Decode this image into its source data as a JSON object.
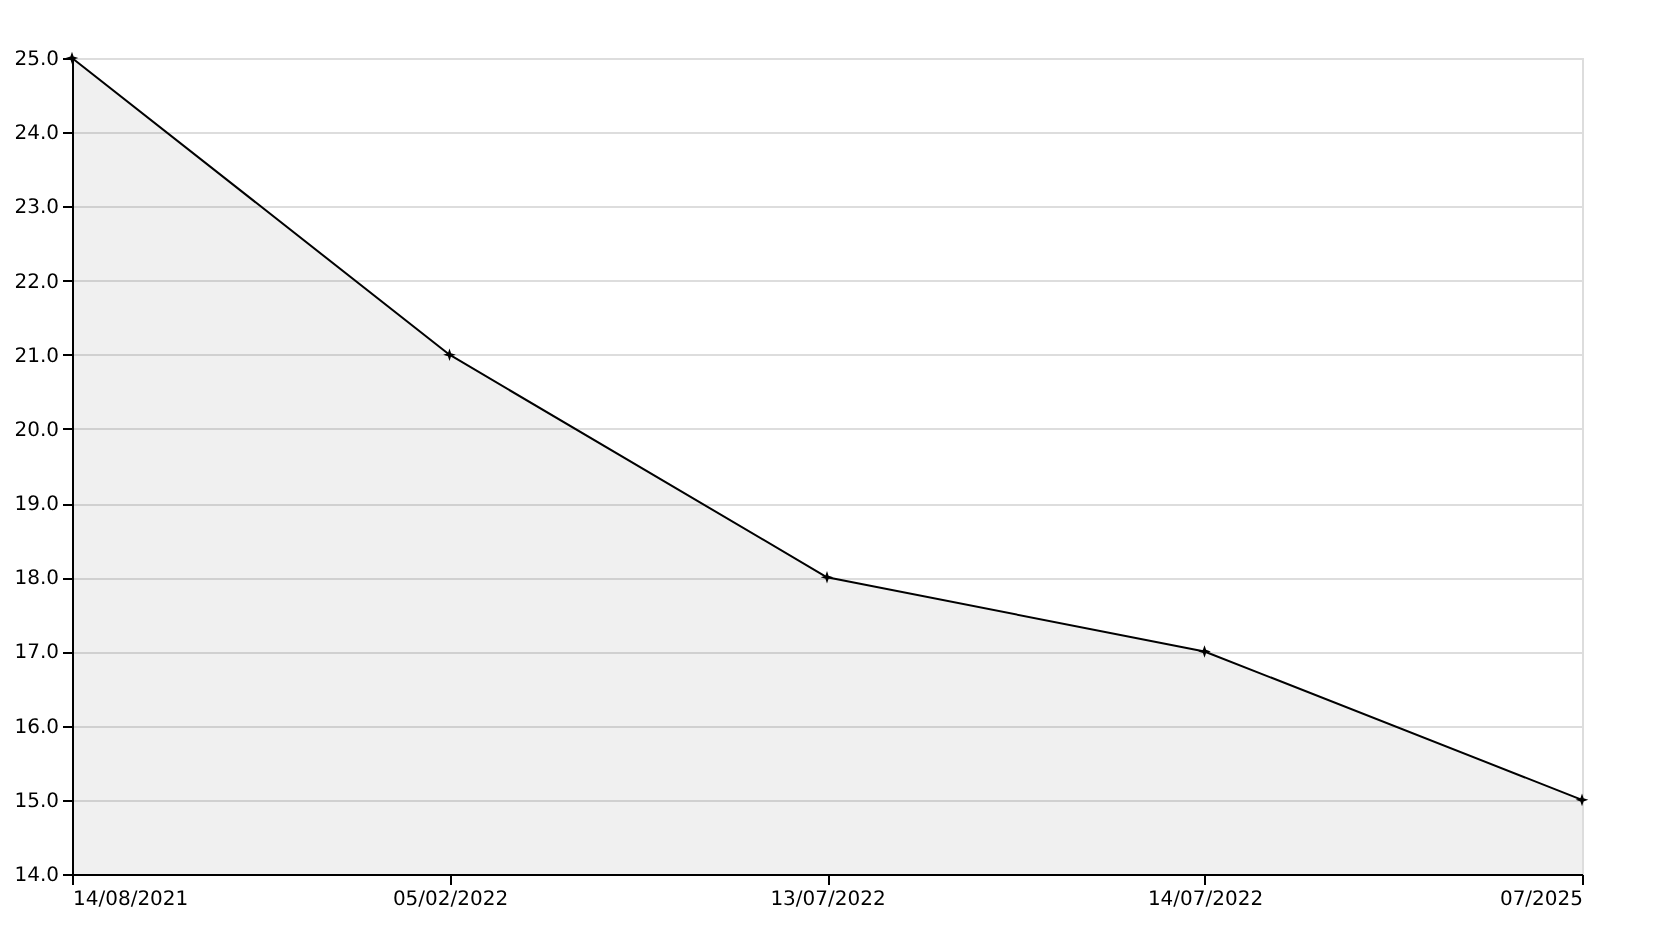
{
  "chart_data": {
    "type": "area",
    "categories": [
      "14/08/2021",
      "05/02/2022",
      "13/07/2022",
      "14/07/2022",
      "07/2025"
    ],
    "series": [
      {
        "color": "#000000",
        "values": [
          25,
          21,
          18,
          17,
          15
        ]
      }
    ],
    "ylim": [
      14,
      25
    ],
    "yticks": [
      {
        "value": 14,
        "label": "14.0"
      },
      {
        "value": 15,
        "label": "15.0"
      },
      {
        "value": 16,
        "label": "16.0"
      },
      {
        "value": 17,
        "label": "17.0"
      },
      {
        "value": 18,
        "label": "18.0"
      },
      {
        "value": 19,
        "label": "19.0"
      },
      {
        "value": 20,
        "label": "20.0"
      },
      {
        "value": 21,
        "label": "21.0"
      },
      {
        "value": 22,
        "label": "22.0"
      },
      {
        "value": 23,
        "label": "23.0"
      },
      {
        "value": 24,
        "label": "24.0"
      },
      {
        "value": 25,
        "label": "25.0"
      }
    ],
    "grid": "y",
    "marker": "star",
    "line_style": "solid"
  }
}
